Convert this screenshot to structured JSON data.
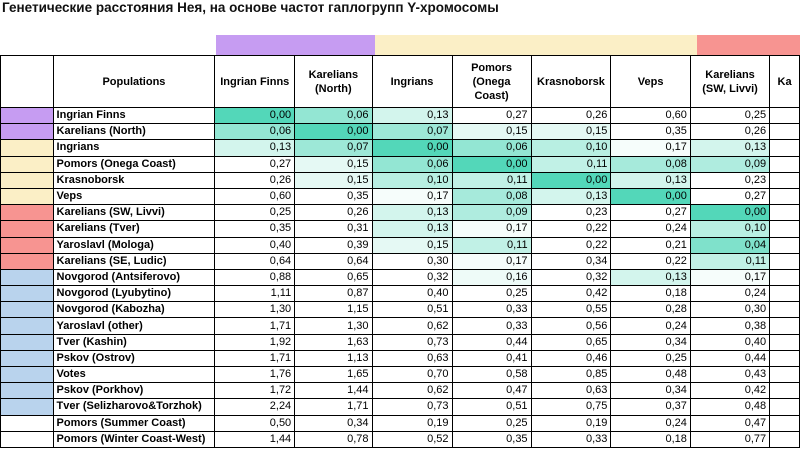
{
  "title": "Генетические расстояния Нея, на основе частот гаплогрупп Y-хромосомы",
  "colors": {
    "purple": "#c69cf2",
    "yellow": "#fbefc6",
    "red": "#f79491",
    "blue": "#b9d3ed"
  },
  "bands": [
    {
      "color": "purple",
      "from": 2,
      "to": 3
    },
    {
      "color": "yellow",
      "from": 4,
      "to": 7
    },
    {
      "color": "red",
      "from": 8,
      "to": 9
    }
  ],
  "columns": [
    "Ingrian Finns",
    "Karelians (North)",
    "Ingrians",
    "Pomors (Onega Coast)",
    "Krasnoborsk",
    "Veps",
    "Karelians (SW, Livvi)",
    "Ka"
  ],
  "header": {
    "populations": "Populations"
  },
  "rows": [
    {
      "group": "purple",
      "name": "Ingrian Finns",
      "values": [
        "0,00",
        "0,06",
        "0,13",
        "0,27",
        "0,26",
        "0,60",
        "0,25"
      ]
    },
    {
      "group": "purple",
      "name": "Karelians (North)",
      "values": [
        "0,06",
        "0,00",
        "0,07",
        "0,15",
        "0,15",
        "0,35",
        "0,26"
      ]
    },
    {
      "group": "yellow",
      "name": "Ingrians",
      "values": [
        "0,13",
        "0,07",
        "0,00",
        "0,06",
        "0,10",
        "0,17",
        "0,13"
      ]
    },
    {
      "group": "yellow",
      "name": "Pomors (Onega Coast)",
      "values": [
        "0,27",
        "0,15",
        "0,06",
        "0,00",
        "0,11",
        "0,08",
        "0,09"
      ]
    },
    {
      "group": "yellow",
      "name": "Krasnoborsk",
      "values": [
        "0,26",
        "0,15",
        "0,10",
        "0,11",
        "0,00",
        "0,13",
        "0,23"
      ]
    },
    {
      "group": "yellow",
      "name": "Veps",
      "values": [
        "0,60",
        "0,35",
        "0,17",
        "0,08",
        "0,13",
        "0,00",
        "0,27"
      ]
    },
    {
      "group": "red",
      "name": "Karelians (SW, Livvi)",
      "values": [
        "0,25",
        "0,26",
        "0,13",
        "0,09",
        "0,23",
        "0,27",
        "0,00"
      ]
    },
    {
      "group": "red",
      "name": "Karelians (Tver)",
      "values": [
        "0,35",
        "0,31",
        "0,13",
        "0,17",
        "0,22",
        "0,24",
        "0,10"
      ]
    },
    {
      "group": "red",
      "name": "Yaroslavl (Mologa)",
      "values": [
        "0,40",
        "0,39",
        "0,15",
        "0,11",
        "0,22",
        "0,21",
        "0,04"
      ]
    },
    {
      "group": "red",
      "name": "Karelians (SE, Ludic)",
      "values": [
        "0,64",
        "0,64",
        "0,30",
        "0,17",
        "0,34",
        "0,22",
        "0,11"
      ]
    },
    {
      "group": "blue",
      "name": "Novgorod (Antsiferovo)",
      "values": [
        "0,88",
        "0,65",
        "0,32",
        "0,16",
        "0,32",
        "0,13",
        "0,17"
      ]
    },
    {
      "group": "blue",
      "name": "Novgorod (Lyubytino)",
      "values": [
        "1,11",
        "0,87",
        "0,40",
        "0,25",
        "0,42",
        "0,18",
        "0,24"
      ]
    },
    {
      "group": "blue",
      "name": "Novgorod (Kabozha)",
      "values": [
        "1,30",
        "1,15",
        "0,51",
        "0,33",
        "0,55",
        "0,28",
        "0,30"
      ]
    },
    {
      "group": "blue",
      "name": "Yaroslavl (other)",
      "values": [
        "1,71",
        "1,30",
        "0,62",
        "0,33",
        "0,56",
        "0,24",
        "0,38"
      ]
    },
    {
      "group": "blue",
      "name": "Tver (Kashin)",
      "values": [
        "1,92",
        "1,63",
        "0,73",
        "0,44",
        "0,65",
        "0,34",
        "0,40"
      ]
    },
    {
      "group": "blue",
      "name": "Pskov (Ostrov)",
      "values": [
        "1,71",
        "1,13",
        "0,63",
        "0,41",
        "0,46",
        "0,25",
        "0,44"
      ]
    },
    {
      "group": "blue",
      "name": "Votes",
      "values": [
        "1,76",
        "1,65",
        "0,70",
        "0,58",
        "0,85",
        "0,48",
        "0,43"
      ]
    },
    {
      "group": "blue",
      "name": "Pskov (Porkhov)",
      "values": [
        "1,72",
        "1,44",
        "0,62",
        "0,47",
        "0,63",
        "0,34",
        "0,42"
      ]
    },
    {
      "group": "blue",
      "name": "Tver (Selizharovo&Torzhok)",
      "values": [
        "2,24",
        "1,71",
        "0,73",
        "0,51",
        "0,75",
        "0,37",
        "0,48"
      ]
    },
    {
      "group": "none",
      "name": "Pomors (Summer Coast)",
      "values": [
        "0,50",
        "0,34",
        "0,19",
        "0,25",
        "0,19",
        "0,24",
        "0,47"
      ]
    },
    {
      "group": "none",
      "name": "Pomors (Winter Coast-West)",
      "values": [
        "1,44",
        "0,78",
        "0,52",
        "0,35",
        "0,33",
        "0,18",
        "0,77"
      ]
    }
  ]
}
